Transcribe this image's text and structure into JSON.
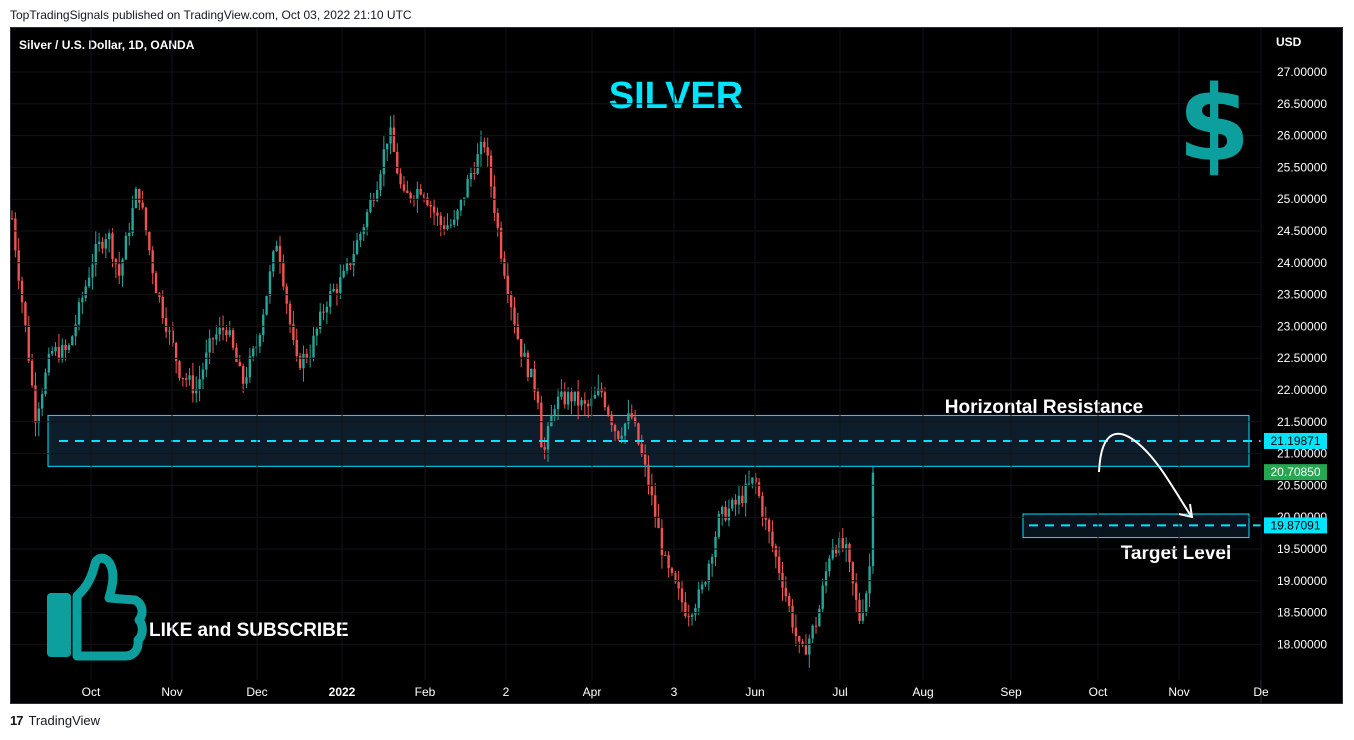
{
  "header": {
    "published_text": "TopTradingSignals published on TradingView.com, Oct 03, 2022 21:10 UTC"
  },
  "chart_data": {
    "type": "candlestick",
    "symbol_line": "Silver / U.S. Dollar, 1D, OANDA",
    "currency": "USD",
    "title": "SILVER",
    "ylim": [
      17.6,
      27.3
    ],
    "y_ticks": [
      "27.00000",
      "26.50000",
      "26.00000",
      "25.50000",
      "25.00000",
      "24.50000",
      "24.00000",
      "23.50000",
      "23.00000",
      "22.50000",
      "22.00000",
      "21.50000",
      "21.00000",
      "20.50000",
      "20.00000",
      "19.50000",
      "19.00000",
      "18.50000",
      "18.00000"
    ],
    "x_ticks": [
      "Oct",
      "Nov",
      "Dec",
      "2022",
      "Feb",
      "2",
      "Apr",
      "3",
      "Jun",
      "Jul",
      "Aug",
      "Sep",
      "Oct",
      "Nov",
      "De"
    ],
    "bold_x_ticks": [
      "2022"
    ],
    "price_path": [
      {
        "date": "2021-09-27",
        "close": 24.7
      },
      {
        "date": "2021-10-04",
        "close": 22.6
      },
      {
        "date": "2021-10-07",
        "close": 21.6
      },
      {
        "date": "2021-10-14",
        "close": 22.6
      },
      {
        "date": "2021-10-21",
        "close": 22.6
      },
      {
        "date": "2021-11-01",
        "close": 24.1
      },
      {
        "date": "2021-11-07",
        "close": 24.5
      },
      {
        "date": "2021-11-12",
        "close": 23.8
      },
      {
        "date": "2021-11-20",
        "close": 25.2
      },
      {
        "date": "2021-11-28",
        "close": 23.6
      },
      {
        "date": "2021-12-08",
        "close": 22.3
      },
      {
        "date": "2021-12-15",
        "close": 22.0
      },
      {
        "date": "2021-12-22",
        "close": 22.8
      },
      {
        "date": "2021-12-28",
        "close": 23.0
      },
      {
        "date": "2022-01-04",
        "close": 22.1
      },
      {
        "date": "2022-01-10",
        "close": 22.7
      },
      {
        "date": "2022-01-19",
        "close": 24.4
      },
      {
        "date": "2022-01-27",
        "close": 22.4
      },
      {
        "date": "2022-02-02",
        "close": 22.6
      },
      {
        "date": "2022-02-09",
        "close": 23.4
      },
      {
        "date": "2022-02-17",
        "close": 23.8
      },
      {
        "date": "2022-02-25",
        "close": 24.6
      },
      {
        "date": "2022-03-03",
        "close": 25.3
      },
      {
        "date": "2022-03-08",
        "close": 26.1
      },
      {
        "date": "2022-03-14",
        "close": 25.0
      },
      {
        "date": "2022-03-22",
        "close": 25.2
      },
      {
        "date": "2022-03-30",
        "close": 24.6
      },
      {
        "date": "2022-04-05",
        "close": 24.6
      },
      {
        "date": "2022-04-12",
        "close": 25.4
      },
      {
        "date": "2022-04-18",
        "close": 25.9
      },
      {
        "date": "2022-04-25",
        "close": 24.2
      },
      {
        "date": "2022-05-03",
        "close": 22.7
      },
      {
        "date": "2022-05-11",
        "close": 21.9
      },
      {
        "date": "2022-05-13",
        "close": 20.9
      },
      {
        "date": "2022-05-18",
        "close": 21.8
      },
      {
        "date": "2022-05-25",
        "close": 21.9
      },
      {
        "date": "2022-06-01",
        "close": 21.7
      },
      {
        "date": "2022-06-07",
        "close": 22.0
      },
      {
        "date": "2022-06-14",
        "close": 21.3
      },
      {
        "date": "2022-06-20",
        "close": 21.6
      },
      {
        "date": "2022-06-27",
        "close": 20.6
      },
      {
        "date": "2022-07-05",
        "close": 19.2
      },
      {
        "date": "2022-07-14",
        "close": 18.5
      },
      {
        "date": "2022-07-20",
        "close": 18.8
      },
      {
        "date": "2022-07-28",
        "close": 20.0
      },
      {
        "date": "2022-08-04",
        "close": 20.2
      },
      {
        "date": "2022-08-12",
        "close": 20.6
      },
      {
        "date": "2022-08-16",
        "close": 20.0
      },
      {
        "date": "2022-08-24",
        "close": 19.0
      },
      {
        "date": "2022-09-01",
        "close": 17.8
      },
      {
        "date": "2022-09-08",
        "close": 18.4
      },
      {
        "date": "2022-09-14",
        "close": 19.6
      },
      {
        "date": "2022-09-20",
        "close": 19.5
      },
      {
        "date": "2022-09-26",
        "close": 18.4
      },
      {
        "date": "2022-09-30",
        "close": 19.0
      },
      {
        "date": "2022-10-03",
        "close": 20.7
      }
    ],
    "resistance_zone": {
      "label": "Horizontal Resistance",
      "from": 20.8,
      "to": 21.6,
      "level": 21.19871
    },
    "target_zone": {
      "label": "Target Level",
      "from": 19.68,
      "to": 20.05,
      "level": 19.87091
    },
    "price_tags": [
      {
        "value": "21.19871",
        "price": 21.19871,
        "bg": "#00e5ff",
        "fg": "#000000"
      },
      {
        "value": "20.70850",
        "price": 20.7085,
        "bg": "#26a651",
        "fg": "#ffffff"
      },
      {
        "value": "19.87091",
        "price": 19.87091,
        "bg": "#00e5ff",
        "fg": "#000000"
      }
    ],
    "badges": {
      "dollar_icon": "dollar-icon",
      "thumb_icon": "thumbs-up-icon",
      "cta": "LIKE and SUBSCRIBE"
    },
    "colors": {
      "up": "#26a69a",
      "down": "#ef5350",
      "accent": "#00e5ff",
      "icon": "#0d9e9e",
      "zone_fill": "#112233"
    }
  },
  "footer": {
    "brand": "TradingView",
    "logo_text": "17"
  }
}
